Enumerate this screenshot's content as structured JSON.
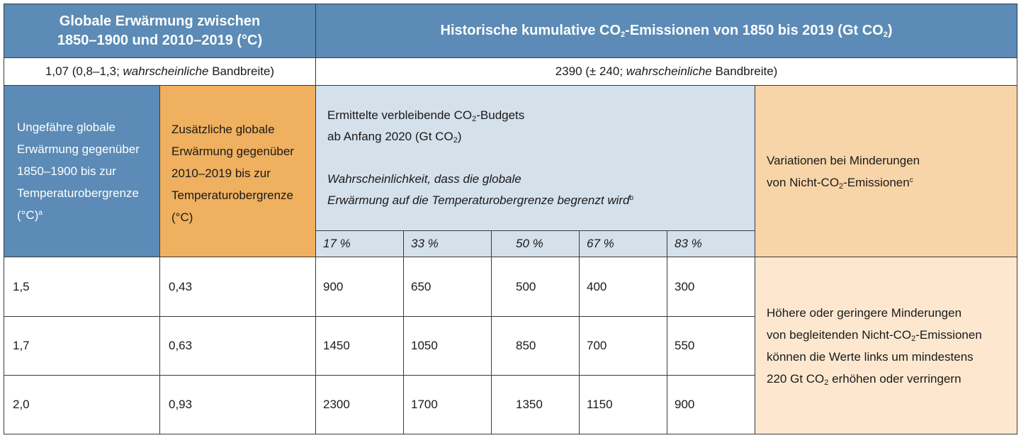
{
  "header": {
    "left_line1": "Globale Erwärmung zwischen",
    "left_line2": "1850–1900 und 2010–2019 (°C)",
    "right_pre": "Historische kumulative CO",
    "right_sub": "2",
    "right_mid": "-Emissionen von 1850 bis 2019 (Gt CO",
    "right_sub2": "2",
    "right_post": ")"
  },
  "summary": {
    "left_pre": "1,07 (0,8–1,3; ",
    "left_italic": "wahrscheinliche",
    "left_post": " Bandbreite)",
    "right_pre": "2390 (± 240; ",
    "right_italic": "wahrscheinliche",
    "right_post": " Bandbreite)"
  },
  "columns": {
    "col1": [
      "Ungefähre globale",
      "Erwärmung gegenüber",
      "1850–1900 bis zur",
      "Temperaturobergrenze"
    ],
    "col1_last": "(°C)",
    "col1_sup": "a",
    "col2": [
      "Zusätzliche globale",
      "Erwärmung gegenüber",
      "2010–2019 bis zur",
      "Temperaturobergrenze",
      "(°C)"
    ],
    "budget_line1_pre": "Ermittelte verbleibende CO",
    "budget_line1_sub": "2",
    "budget_line1_post": "-Budgets",
    "budget_line2_pre": "ab Anfang 2020 (Gt CO",
    "budget_line2_sub": "2",
    "budget_line2_post": ")",
    "budget_italic1": "Wahrscheinlichkeit, dass die globale",
    "budget_italic2": "Erwärmung auf die Temperaturobergrenze begrenzt wird",
    "budget_sup": "b",
    "variation_line1": "Variationen bei Minderungen",
    "variation_line2_pre": "von Nicht-CO",
    "variation_line2_sub": "2",
    "variation_line2_post": "-Emissionen",
    "variation_sup": "c",
    "percentages": [
      "17 %",
      "33 %",
      "50 %",
      "67 %",
      "83 %"
    ]
  },
  "rows": [
    {
      "warming": "1,5",
      "additional": "0,43",
      "budgets": [
        "900",
        "650",
        "500",
        "400",
        "300"
      ]
    },
    {
      "warming": "1,7",
      "additional": "0,63",
      "budgets": [
        "1450",
        "1050",
        "850",
        "700",
        "550"
      ]
    },
    {
      "warming": "2,0",
      "additional": "0,93",
      "budgets": [
        "2300",
        "1700",
        "1350",
        "1150",
        "900"
      ]
    }
  ],
  "note": {
    "line1": "Höhere oder geringere Minderungen",
    "line2_pre": "von begleitenden Nicht-CO",
    "line2_sub": "2",
    "line2_post": "-Emissionen",
    "line3": "können die Werte links um mindestens",
    "line4_pre": "220 Gt CO",
    "line4_sub": "2",
    "line4_post": " erhöhen oder verringern"
  },
  "colors": {
    "header_blue": "#5b8bb6",
    "orange": "#efb05f",
    "light_blue": "#d4e0ea",
    "peach": "#f8d5a8",
    "light_peach": "#fde8cf"
  }
}
